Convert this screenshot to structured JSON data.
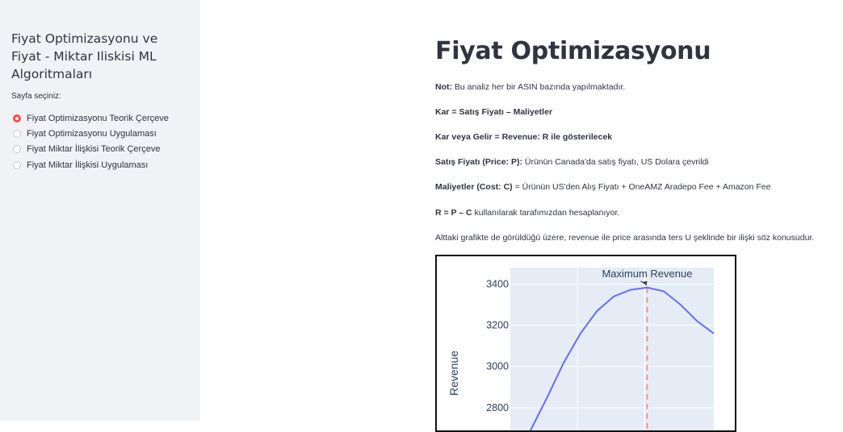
{
  "sidebar": {
    "title": "Fiyat Optimizasyonu ve Fiyat - Miktar Iliskisi ML Algoritmaları",
    "radio_caption": "Sayfa seçiniz:",
    "options": [
      {
        "label": "Fiyat Optimizasyonu Teorik Çerçeve",
        "selected": true
      },
      {
        "label": "Fiyat Optimizasyonu Uygulaması",
        "selected": false
      },
      {
        "label": "Fiyat Miktar İlişkisi Teorik Çerçeve",
        "selected": false
      },
      {
        "label": "Fiyat Miktar İlişkisi Uygulaması",
        "selected": false
      }
    ],
    "accent_color": "#ff4b4b"
  },
  "main": {
    "title": "Fiyat Optimizasyonu",
    "note_bold": "Not:",
    "note_text": " Bu analiz her bir ASIN bazında yapılmaktadır.",
    "profit_formula": "Kar = Satış Fiyatı – Maliyetler",
    "revenue_line": "Kar veya Gelir = Revenue: R ile gösterilecek",
    "price_bold": "Satış Fiyatı (Price: P):",
    "price_text": " Ürünün Canada'da satış fiyatı, US Dolara çevrildi",
    "cost_bold": "Maliyetler (Cost: C)",
    "cost_text": " = Ürünün US'den Alış Fiyatı + OneAMZ Aradepo Fee + Amazon Fee",
    "r_formula_bold": "R = P – C",
    "r_formula_text": " kullanılarak tarafımızdan hesaplanıyor.",
    "chart_intro": "Alttaki grafikte de görüldüğü üzere, revenue ile price arasında ters U şeklinde bir ilişki söz konusudur."
  },
  "chart_data": {
    "type": "line",
    "annotation": "Maximum Revenue",
    "ylabel": "Revenue",
    "yticks": [
      2800,
      3000,
      3200,
      3400
    ],
    "ylim": [
      2690,
      3480
    ],
    "series": [
      {
        "values": [
          2690,
          2850,
          3020,
          3160,
          3270,
          3340,
          3372,
          3383,
          3365,
          3300,
          3220,
          3160
        ]
      }
    ],
    "line_color": "#636efa",
    "peak_marker_color": "#ef553b",
    "plot_bg": "#e5ecf6"
  }
}
